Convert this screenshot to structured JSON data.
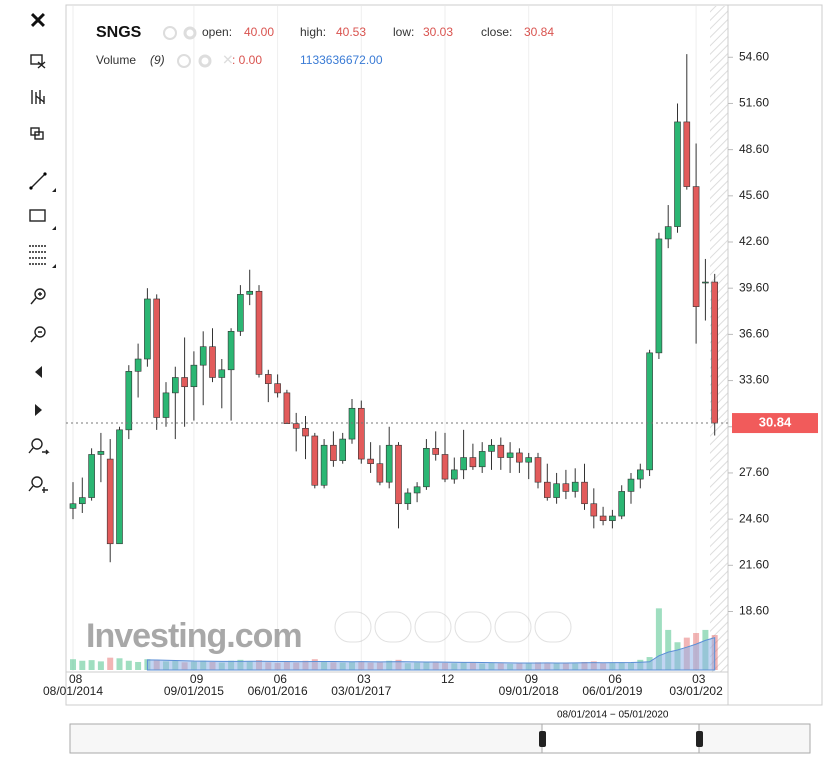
{
  "chart_data": {
    "type": "candlestick",
    "title": "SNGS",
    "legend": {
      "open_label": "open:",
      "open": "40.00",
      "high_label": "high:",
      "high": "40.53",
      "low_label": "low:",
      "low": "30.03",
      "close_label": "close:",
      "close": "30.84"
    },
    "up_color": "#2bb673",
    "down_color": "#e25b5b",
    "categories": [
      "08",
      null,
      null,
      null,
      null,
      null,
      null,
      null,
      null,
      null,
      null,
      null,
      null,
      "09",
      null,
      null,
      null,
      null,
      null,
      null,
      null,
      null,
      "06",
      null,
      null,
      null,
      null,
      null,
      null,
      null,
      null,
      "03",
      null,
      null,
      null,
      null,
      null,
      null,
      null,
      null,
      "12",
      null,
      null,
      null,
      null,
      null,
      null,
      null,
      null,
      "09",
      null,
      null,
      null,
      null,
      null,
      null,
      null,
      null,
      "06",
      null,
      null,
      null,
      null,
      null,
      null,
      null,
      null,
      "03",
      null,
      null
    ],
    "date_labels": [
      "08/01/2014",
      null,
      null,
      null,
      null,
      null,
      null,
      null,
      null,
      null,
      null,
      null,
      null,
      "09/01/2015",
      null,
      null,
      null,
      null,
      null,
      null,
      null,
      null,
      "06/01/2016",
      null,
      null,
      null,
      null,
      null,
      null,
      null,
      null,
      "03/01/2017",
      null,
      null,
      null,
      null,
      null,
      null,
      null,
      null,
      null,
      null,
      null,
      null,
      null,
      null,
      null,
      null,
      null,
      "09/01/2018",
      null,
      null,
      null,
      null,
      null,
      null,
      null,
      null,
      "06/01/2019",
      null,
      null,
      null,
      null,
      null,
      null,
      null,
      null,
      "03/01/202",
      null,
      null
    ],
    "open": [
      25.3,
      25.6,
      26.0,
      28.8,
      28.5,
      23.0,
      30.4,
      34.2,
      35.0,
      38.9,
      31.2,
      32.8,
      33.8,
      33.2,
      34.6,
      35.8,
      33.8,
      34.3,
      36.8,
      39.2,
      39.4,
      34.0,
      33.4,
      32.8,
      30.8,
      30.5,
      30.0,
      26.8,
      29.4,
      28.4,
      29.8,
      31.8,
      28.5,
      28.2,
      27.0,
      29.4,
      25.6,
      26.3,
      26.7,
      29.2,
      28.8,
      27.2,
      27.8,
      28.6,
      28.0,
      29.0,
      29.4,
      28.6,
      28.9,
      28.3,
      28.6,
      27.0,
      26.0,
      26.9,
      26.4,
      27.0,
      25.6,
      24.8,
      24.5,
      24.8,
      26.4,
      27.2,
      27.8,
      35.4,
      42.8,
      43.6,
      50.4,
      46.2,
      40.0,
      40.0
    ],
    "high": [
      27.0,
      27.3,
      29.2,
      30.2,
      29.8,
      30.6,
      34.6,
      36.0,
      39.6,
      39.2,
      33.5,
      34.5,
      36.4,
      35.5,
      36.8,
      37.0,
      35.0,
      37.0,
      39.8,
      40.8,
      39.8,
      34.3,
      34.0,
      33.0,
      31.5,
      31.3,
      30.2,
      29.8,
      30.3,
      30.2,
      32.4,
      32.3,
      29.6,
      29.4,
      30.6,
      29.6,
      26.6,
      27.0,
      29.8,
      30.3,
      30.2,
      28.6,
      30.4,
      29.5,
      29.6,
      29.8,
      29.9,
      29.6,
      29.2,
      28.9,
      28.9,
      28.2,
      27.6,
      27.8,
      27.9,
      28.2,
      26.6,
      25.4,
      25.2,
      26.8,
      27.6,
      28.2,
      35.6,
      43.2,
      45.0,
      51.6,
      54.8,
      49.0,
      41.5,
      40.53
    ],
    "low": [
      24.6,
      25.0,
      25.8,
      27.0,
      21.8,
      23.0,
      29.8,
      32.5,
      34.5,
      30.4,
      30.6,
      29.8,
      30.6,
      31.0,
      32.0,
      33.5,
      31.8,
      31.0,
      36.5,
      38.5,
      33.8,
      32.2,
      32.5,
      30.8,
      29.0,
      28.5,
      26.6,
      26.6,
      28.0,
      28.2,
      29.5,
      28.2,
      27.6,
      26.8,
      26.6,
      24.0,
      25.2,
      25.7,
      26.5,
      28.4,
      27.0,
      26.9,
      27.2,
      27.8,
      27.6,
      27.8,
      27.8,
      27.6,
      27.6,
      27.2,
      26.6,
      25.8,
      25.6,
      25.9,
      26.0,
      25.2,
      24.0,
      24.2,
      24.0,
      24.6,
      25.6,
      26.6,
      27.4,
      35.0,
      42.2,
      43.2,
      46.0,
      36.0,
      37.5,
      30.03
    ],
    "close": [
      25.6,
      26.0,
      28.8,
      29.0,
      23.0,
      30.4,
      34.2,
      35.0,
      38.9,
      31.2,
      32.8,
      33.8,
      33.2,
      34.6,
      35.8,
      33.8,
      34.3,
      36.8,
      39.2,
      39.4,
      34.0,
      33.4,
      32.8,
      30.8,
      30.5,
      30.0,
      26.8,
      29.4,
      28.4,
      29.8,
      31.8,
      28.5,
      28.2,
      27.0,
      29.4,
      25.6,
      26.3,
      26.7,
      29.2,
      28.8,
      27.2,
      27.8,
      28.6,
      28.0,
      29.0,
      29.4,
      28.6,
      28.9,
      28.3,
      28.6,
      27.0,
      26.0,
      26.9,
      26.4,
      27.0,
      25.6,
      24.8,
      24.5,
      24.8,
      26.4,
      27.2,
      27.8,
      35.4,
      42.8,
      43.6,
      50.4,
      46.2,
      38.4,
      40.0,
      30.84
    ],
    "ylim": [
      14.8,
      57.8
    ],
    "yticks": [
      {
        "value": 18.6,
        "label": "18.60"
      },
      {
        "value": 21.6,
        "label": "21.60"
      },
      {
        "value": 24.6,
        "label": "24.60"
      },
      {
        "value": 27.6,
        "label": "27.60"
      },
      {
        "value": 30.6,
        "label": "30.60"
      },
      {
        "value": 33.6,
        "label": "33.60"
      },
      {
        "value": 36.6,
        "label": "36.60"
      },
      {
        "value": 39.6,
        "label": "39.60"
      },
      {
        "value": 42.6,
        "label": "42.60"
      },
      {
        "value": 45.6,
        "label": "45.60"
      },
      {
        "value": 48.6,
        "label": "48.60"
      },
      {
        "value": 51.6,
        "label": "51.60"
      },
      {
        "value": 54.6,
        "label": "54.60"
      }
    ],
    "last_price_label": "30.84",
    "volume": {
      "name": "Volume",
      "period_label": "(9)",
      "value_label": ": 0.00",
      "last_label": "1133636672.00",
      "ma_color": "#8fb3e8",
      "vlim": [
        0,
        2400000000
      ],
      "values": [
        350000000,
        300000000,
        320000000,
        280000000,
        400000000,
        380000000,
        300000000,
        260000000,
        350000000,
        330000000,
        280000000,
        300000000,
        250000000,
        270000000,
        300000000,
        260000000,
        240000000,
        300000000,
        330000000,
        280000000,
        320000000,
        250000000,
        230000000,
        260000000,
        240000000,
        300000000,
        350000000,
        280000000,
        250000000,
        240000000,
        260000000,
        280000000,
        240000000,
        250000000,
        300000000,
        330000000,
        220000000,
        240000000,
        260000000,
        250000000,
        230000000,
        220000000,
        250000000,
        240000000,
        210000000,
        230000000,
        220000000,
        200000000,
        210000000,
        230000000,
        250000000,
        240000000,
        220000000,
        230000000,
        210000000,
        260000000,
        280000000,
        220000000,
        230000000,
        250000000,
        240000000,
        330000000,
        420000000,
        2000000000,
        1300000000,
        900000000,
        1050000000,
        1200000000,
        1300000000,
        1133636672
      ],
      "ma": [
        null,
        null,
        null,
        null,
        null,
        null,
        null,
        null,
        330000000,
        324000000,
        318000000,
        310000000,
        300000000,
        290000000,
        287000000,
        283000000,
        278000000,
        280000000,
        281000000,
        282000000,
        284000000,
        280000000,
        276000000,
        274000000,
        272000000,
        270000000,
        274000000,
        276000000,
        274000000,
        270000000,
        268000000,
        270000000,
        266000000,
        262000000,
        266000000,
        272000000,
        266000000,
        262000000,
        260000000,
        258000000,
        256000000,
        252000000,
        248000000,
        246000000,
        244000000,
        240000000,
        236000000,
        232000000,
        228000000,
        226000000,
        228000000,
        230000000,
        228000000,
        228000000,
        230000000,
        234000000,
        238000000,
        236000000,
        238000000,
        240000000,
        242000000,
        252000000,
        268000000,
        460000000,
        580000000,
        650000000,
        740000000,
        840000000,
        960000000,
        1050000000
      ]
    },
    "watermark": "Investing.com",
    "range_label": "08/01/2014 − 05/01/2020"
  }
}
